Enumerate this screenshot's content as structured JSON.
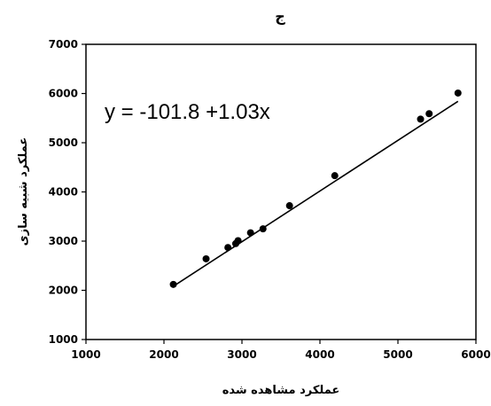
{
  "chart_data": {
    "type": "scatter",
    "title": "ج",
    "xlabel": "عملکرد مشاهده شده",
    "ylabel": "عملکرد شبیه سازی",
    "xlim": [
      1000,
      6000
    ],
    "ylim": [
      1000,
      7000
    ],
    "x_ticks": [
      1000,
      2000,
      3000,
      4000,
      5000,
      6000
    ],
    "y_ticks": [
      1000,
      2000,
      3000,
      4000,
      5000,
      6000,
      7000
    ],
    "grid": false,
    "legend": "none",
    "points": [
      {
        "x": 2120,
        "y": 2120
      },
      {
        "x": 2540,
        "y": 2640
      },
      {
        "x": 2820,
        "y": 2870
      },
      {
        "x": 2920,
        "y": 2950
      },
      {
        "x": 2950,
        "y": 3010
      },
      {
        "x": 3110,
        "y": 3170
      },
      {
        "x": 3270,
        "y": 3250
      },
      {
        "x": 3610,
        "y": 3720
      },
      {
        "x": 4190,
        "y": 4330
      },
      {
        "x": 5290,
        "y": 5480
      },
      {
        "x": 5400,
        "y": 5590
      },
      {
        "x": 5770,
        "y": 6010
      }
    ],
    "trendline": {
      "intercept": -101.8,
      "slope": 1.03,
      "x_range": [
        2120,
        5770
      ]
    },
    "annotation": "y = -101.8 +1.03x",
    "marker_color": "#000000",
    "line_color": "#000000"
  }
}
